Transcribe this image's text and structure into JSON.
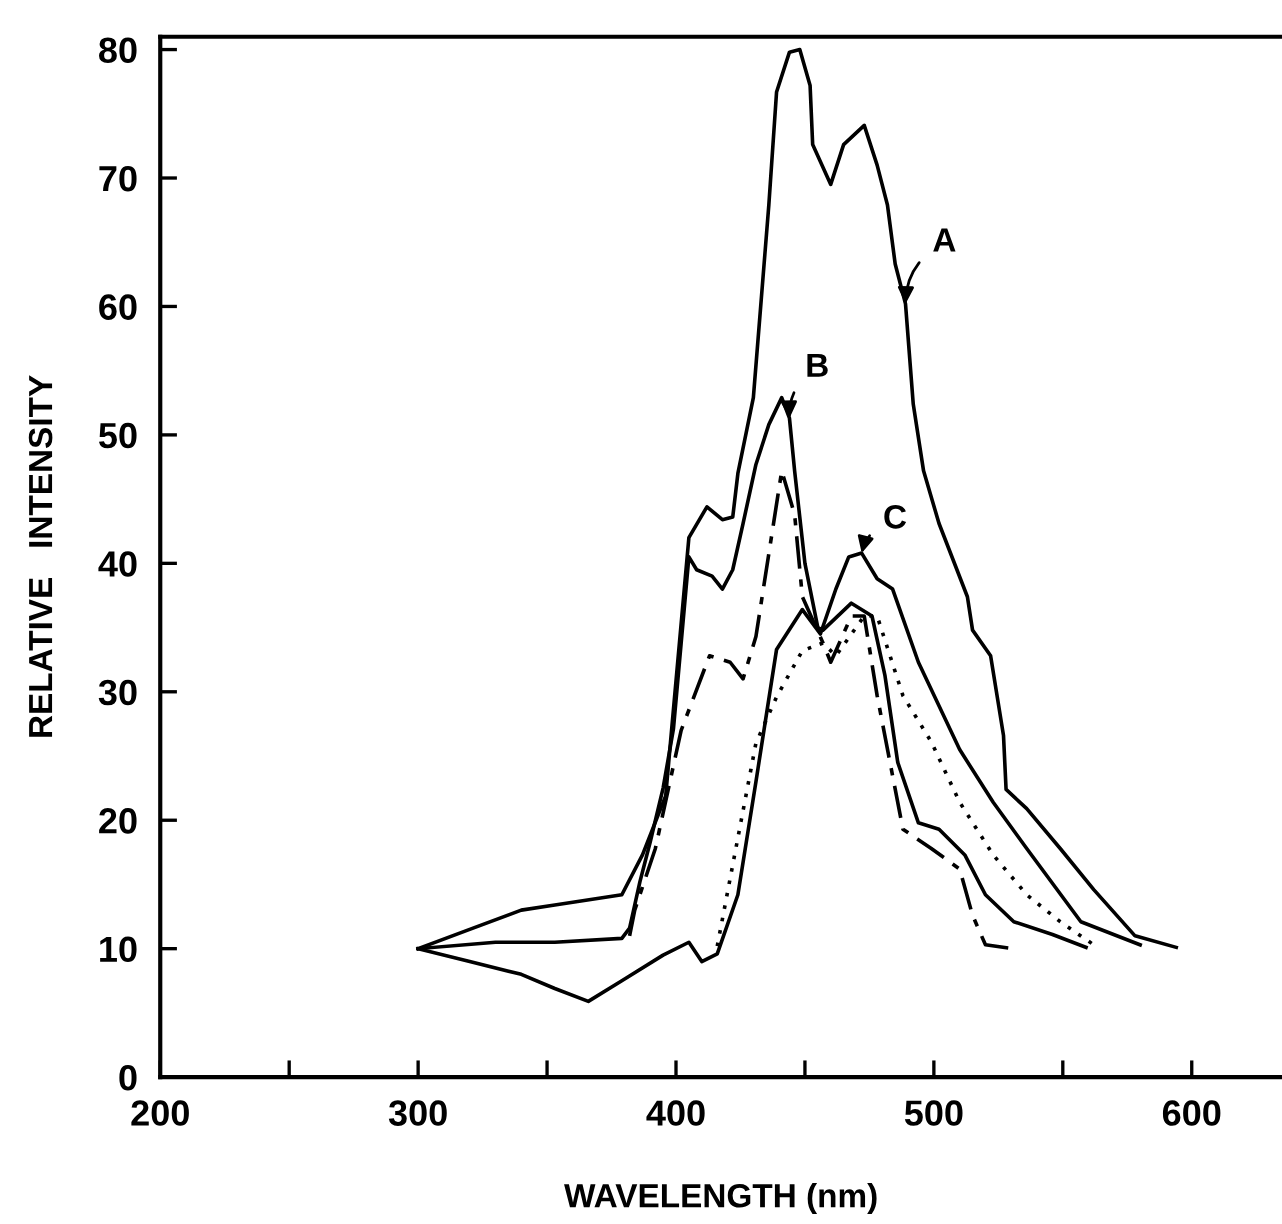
{
  "chart_data": {
    "type": "line",
    "xlabel": "WAVELENGTH (nm)",
    "ylabel": "RELATIVE   INTENSITY",
    "xlim": [
      200,
      635
    ],
    "ylim": [
      0,
      81
    ],
    "xticks": [
      200,
      {
        "value": 250,
        "label": null
      },
      300,
      {
        "value": 350,
        "label": null
      },
      400,
      {
        "value": 450,
        "label": null
      },
      500,
      {
        "value": 550,
        "label": null
      },
      600
    ],
    "yticks": [
      0,
      10,
      20,
      30,
      40,
      50,
      60,
      70,
      80
    ],
    "grid": false,
    "legend": false,
    "marker": "none",
    "series": [
      {
        "name": "A",
        "color": "#000000",
        "line_style": "solid",
        "x": [
          300,
          320,
          340,
          353,
          379,
          387,
          396,
          405,
          412,
          418,
          422,
          424,
          430,
          436,
          439,
          444,
          448,
          452,
          453,
          460,
          465,
          473,
          478,
          482,
          485,
          489,
          492,
          496,
          502,
          513,
          515,
          522,
          527,
          528,
          536,
          549,
          562,
          578,
          594
        ],
        "values": [
          10,
          11.5,
          13,
          13.4,
          14.2,
          17.3,
          21.9,
          42,
          44.4,
          43.4,
          43.6,
          47,
          52.9,
          67.9,
          76.7,
          79.8,
          80,
          77.2,
          72.6,
          69.5,
          72.6,
          74.1,
          71,
          67.9,
          63.3,
          60.2,
          52.4,
          47.2,
          43.1,
          37.4,
          34.8,
          32.8,
          26.6,
          22.4,
          20.9,
          17.8,
          14.6,
          11,
          10.1
        ]
      },
      {
        "name": "B",
        "color": "#000000",
        "line_style": "solid",
        "x": [
          300,
          330,
          353,
          379,
          382,
          386,
          390,
          395,
          399,
          402,
          405,
          408,
          414,
          418,
          422,
          426,
          431,
          436,
          441,
          444,
          446,
          450,
          455,
          457,
          468,
          476,
          481,
          486,
          494,
          502,
          512,
          520,
          531,
          546,
          559
        ],
        "values": [
          10,
          10.5,
          10.5,
          10.8,
          11.6,
          15.2,
          18.3,
          22.5,
          27.1,
          33.8,
          40.5,
          39.5,
          39,
          38,
          39.5,
          43.1,
          47.7,
          50.8,
          52.9,
          51.3,
          47.2,
          40,
          35,
          34.8,
          36.9,
          35.9,
          31.3,
          24.5,
          19.8,
          19.3,
          17.3,
          14.2,
          12.1,
          11.1,
          10.1
        ]
      },
      {
        "name": "C",
        "color": "#000000",
        "line_style": "solid",
        "x": [
          300,
          320,
          340,
          353,
          366,
          379,
          395,
          405,
          410,
          416,
          424,
          431,
          439,
          449,
          456,
          462,
          467,
          472,
          478,
          484,
          494,
          510,
          523,
          536,
          557,
          580
        ],
        "values": [
          10,
          9,
          8,
          6.9,
          5.9,
          7.5,
          9.5,
          10.5,
          9,
          9.6,
          14.2,
          23,
          33.3,
          36.4,
          34.5,
          38,
          40.5,
          40.8,
          38.8,
          38,
          32.3,
          25.5,
          21.4,
          17.8,
          12.1,
          10.3
        ]
      },
      {
        "color": "#000000",
        "line_style": "dashed",
        "x": [
          382,
          384,
          392,
          402,
          413,
          421,
          426,
          431,
          441,
          446,
          449,
          457,
          460,
          468,
          473,
          478,
          483,
          488,
          499,
          510,
          515,
          520,
          531
        ],
        "values": [
          11,
          13,
          17.8,
          27,
          32.8,
          32.3,
          31,
          34.3,
          47.2,
          43.8,
          37.4,
          33.8,
          32.3,
          35.9,
          35.9,
          29.7,
          24.5,
          19.3,
          17.8,
          16.2,
          12.6,
          10.3,
          10
        ]
      },
      {
        "color": "#000000",
        "line_style": "dotted",
        "x": [
          416,
          431,
          439,
          449,
          457,
          462,
          473,
          478,
          488,
          499,
          510,
          523,
          536,
          549,
          562
        ],
        "values": [
          10.2,
          26,
          29.6,
          33.2,
          33.8,
          32.8,
          35.9,
          35.9,
          29.7,
          26.1,
          21.4,
          17.3,
          14.2,
          12.1,
          10.3
        ]
      }
    ]
  }
}
